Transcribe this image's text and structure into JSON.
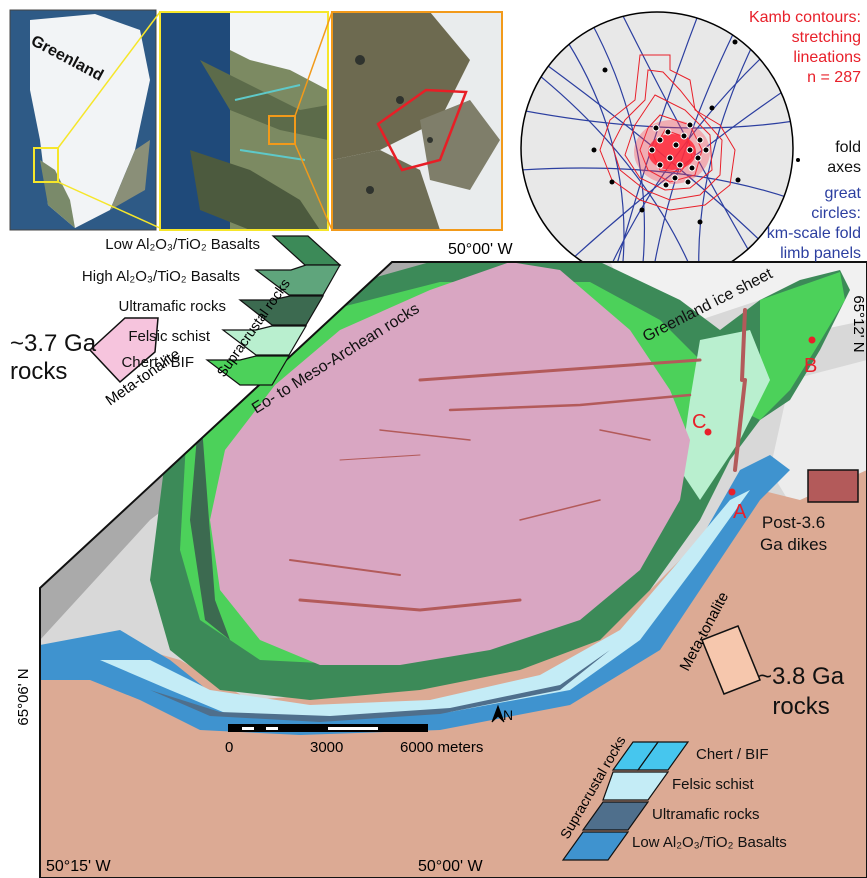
{
  "insets": {
    "greenland_label": "Greenland"
  },
  "stereonet": {
    "kamb_line1": "Kamb contours:",
    "kamb_line2": "stretching",
    "kamb_line3": "lineations",
    "kamb_line4": "n = 287",
    "fold_line1": "fold",
    "fold_line2": "axes",
    "gc_line1": "great",
    "gc_line2": "circles:",
    "gc_line3": "km-scale fold",
    "gc_line4": "limb panels",
    "colors": {
      "contours": "#e8202a",
      "great_circles": "#2c3fa0",
      "fold_axes": "#000000"
    }
  },
  "coordinates": {
    "top_longitude": "50°00' W",
    "right_latitude": "65°12' N",
    "left_latitude": "65°06' N",
    "bottom_left_longitude": "50°15' W",
    "bottom_right_longitude": "50°00' W"
  },
  "legend_37": {
    "items": [
      "Low Al₂O₃/TiO₂ Basalts",
      "High Al₂O₃/TiO₂ Basalts",
      "Ultramafic rocks",
      "Felsic schist",
      "Chert / BIF"
    ],
    "colors": [
      "#3c8a58",
      "#5fa57c",
      "#3c6a50",
      "#b9efcf",
      "#4cd15a"
    ],
    "group_label": "Supracrustal rocks",
    "tonalite_label": "Meta-tonalite",
    "tonalite_color": "#f6c4dd",
    "age_line1": "~3.7 Ga",
    "age_line2": "rocks"
  },
  "legend_38": {
    "items": [
      "Chert / BIF",
      "Felsic schist",
      "Ultramafic rocks",
      "Low Al₂O₃/TiO₂ Basalts"
    ],
    "colors": [
      "#46c6ee",
      "#c4ecf6",
      "#4f6f8c",
      "#3f93cf"
    ],
    "group_label": "Supracrustal rocks",
    "tonalite_label": "Meta-tonalite",
    "tonalite_color": "#f6c7ad",
    "age_line1": "~3.8 Ga",
    "age_line2": "rocks"
  },
  "dikes": {
    "label1": "Post-3.6",
    "label2": "Ga dikes",
    "color": "#b35a5a"
  },
  "map_labels": {
    "eo_meso": "Eo- to Meso-Archean rocks",
    "ice_sheet": "Greenland ice sheet",
    "point_a": "A",
    "point_b": "B",
    "point_c": "C"
  },
  "scalebar": {
    "tick0": "0",
    "tick1": "3000",
    "tick2": "6000 meters",
    "north": "N"
  }
}
